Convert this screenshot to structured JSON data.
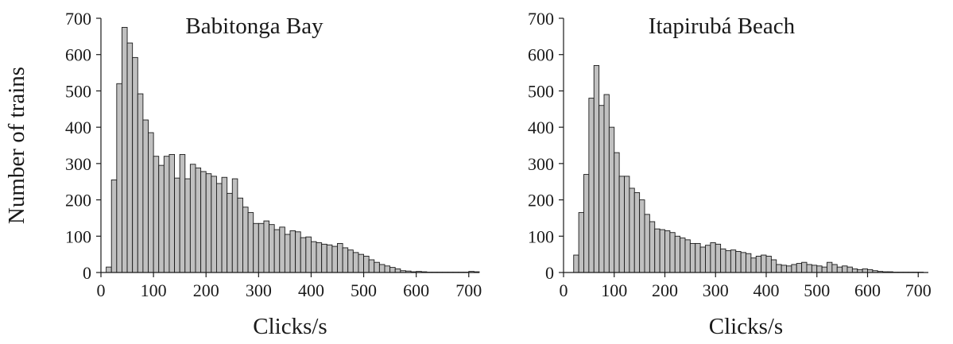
{
  "chart_data": [
    {
      "type": "bar",
      "title": "Babitonga Bay",
      "xlabel": "Clicks/s",
      "ylabel": "Number of trains",
      "xlim": [
        0,
        720
      ],
      "ylim": [
        0,
        700
      ],
      "x_ticks": [
        0,
        100,
        200,
        300,
        400,
        500,
        600,
        700
      ],
      "y_ticks": [
        0,
        100,
        200,
        300,
        400,
        500,
        600,
        700
      ],
      "bin_width": 10,
      "bin_start": 10,
      "values": [
        15,
        255,
        520,
        675,
        632,
        592,
        492,
        420,
        385,
        320,
        295,
        320,
        325,
        260,
        325,
        258,
        298,
        288,
        278,
        272,
        265,
        245,
        262,
        218,
        258,
        205,
        180,
        165,
        135,
        135,
        142,
        132,
        118,
        125,
        105,
        115,
        112,
        96,
        98,
        85,
        82,
        78,
        76,
        72,
        80,
        68,
        62,
        55,
        50,
        45,
        35,
        28,
        22,
        18,
        14,
        10,
        5,
        4,
        2,
        3,
        2,
        1,
        1,
        1,
        1,
        1,
        1,
        1,
        1,
        3,
        2
      ]
    },
    {
      "type": "bar",
      "title": "Itapirubá Beach",
      "xlabel": "Clicks/s",
      "ylabel": "",
      "xlim": [
        0,
        720
      ],
      "ylim": [
        0,
        700
      ],
      "x_ticks": [
        0,
        100,
        200,
        300,
        400,
        500,
        600,
        700
      ],
      "y_ticks": [
        0,
        100,
        200,
        300,
        400,
        500,
        600,
        700
      ],
      "bin_width": 10,
      "bin_start": 10,
      "values": [
        0,
        48,
        165,
        270,
        480,
        570,
        460,
        490,
        400,
        330,
        265,
        265,
        232,
        220,
        200,
        160,
        140,
        120,
        118,
        115,
        110,
        100,
        95,
        90,
        80,
        80,
        70,
        75,
        82,
        78,
        65,
        60,
        62,
        58,
        55,
        52,
        40,
        45,
        48,
        45,
        35,
        22,
        20,
        18,
        22,
        25,
        28,
        22,
        20,
        18,
        15,
        28,
        22,
        15,
        18,
        15,
        10,
        8,
        10,
        8,
        5,
        3,
        2,
        2,
        1,
        1,
        1,
        1,
        1,
        1,
        0
      ]
    }
  ],
  "colors": {
    "bar_fill": "#c0c0c0",
    "bar_stroke": "#1a1a1a",
    "axis": "#1a1a1a"
  }
}
